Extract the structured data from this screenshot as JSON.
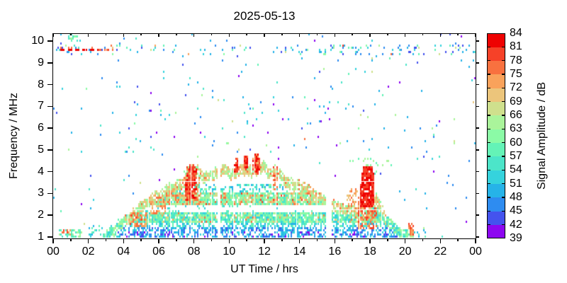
{
  "title": "2025-05-13",
  "axes": {
    "x_label": "UT Time / hrs",
    "y_label": "Frequency / MHz",
    "x_ticks": [
      "00",
      "02",
      "04",
      "06",
      "08",
      "10",
      "12",
      "14",
      "16",
      "18",
      "20",
      "22",
      "00"
    ],
    "x_tick_hours": [
      0,
      2,
      4,
      6,
      8,
      10,
      12,
      14,
      16,
      18,
      20,
      22,
      24
    ],
    "x_range_hours": [
      0,
      24
    ],
    "y_ticks": [
      "1",
      "2",
      "3",
      "4",
      "5",
      "6",
      "7",
      "8",
      "9",
      "10"
    ],
    "y_tick_mhz": [
      1,
      2,
      3,
      4,
      5,
      6,
      7,
      8,
      9,
      10
    ],
    "y_range_mhz": [
      0.94,
      10.36
    ]
  },
  "colorbar": {
    "label": "Signal Amplitude / dB",
    "min": 39,
    "max": 84,
    "step": 3,
    "tick_labels": [
      "84",
      "81",
      "78",
      "75",
      "72",
      "69",
      "66",
      "63",
      "60",
      "57",
      "54",
      "51",
      "48",
      "45",
      "42",
      "39"
    ],
    "colors_low_to_high": [
      "#8d07f0",
      "#4453ee",
      "#2e8cf0",
      "#26b3e8",
      "#35d3dd",
      "#4ce5c9",
      "#64f3b7",
      "#8bfba6",
      "#aaf49b",
      "#cfe08d",
      "#ecc57b",
      "#f9a25b",
      "#f8713f",
      "#f64128",
      "#ee0202"
    ]
  },
  "chart_data": {
    "type": "heatmap",
    "title": "2025-05-13",
    "xlabel": "UT Time / hrs",
    "ylabel": "Frequency / MHz",
    "zlabel": "Signal Amplitude / dB",
    "x_range": [
      0,
      24
    ],
    "y_range": [
      0.94,
      10.36
    ],
    "z_range": [
      39,
      84
    ],
    "time_step_hr": 0.08333,
    "freq_step_mhz": 0.1,
    "seed": 42,
    "ionogram_envelope_t_f": [
      [
        2.8,
        1.0
      ],
      [
        3.2,
        1.35
      ],
      [
        3.7,
        1.75
      ],
      [
        4.2,
        2.05
      ],
      [
        5.0,
        2.55
      ],
      [
        5.8,
        3.0
      ],
      [
        6.6,
        3.4
      ],
      [
        7.3,
        3.65
      ],
      [
        7.6,
        4.2
      ],
      [
        8.15,
        4.25
      ],
      [
        8.5,
        3.95
      ],
      [
        9.0,
        4.1
      ],
      [
        9.6,
        4.35
      ],
      [
        10.0,
        4.1
      ],
      [
        10.6,
        4.25
      ],
      [
        11.1,
        4.2
      ],
      [
        11.9,
        4.45
      ],
      [
        12.3,
        4.05
      ],
      [
        12.6,
        4.25
      ],
      [
        13.0,
        3.85
      ],
      [
        13.5,
        3.65
      ],
      [
        14.3,
        3.4
      ],
      [
        15.1,
        3.05
      ],
      [
        15.9,
        2.65
      ],
      [
        16.7,
        2.45
      ],
      [
        17.3,
        2.4
      ],
      [
        17.5,
        2.6
      ],
      [
        18.0,
        2.7
      ],
      [
        18.35,
        3.0
      ],
      [
        18.7,
        2.3
      ],
      [
        19.0,
        1.9
      ],
      [
        19.5,
        1.55
      ],
      [
        20.0,
        1.25
      ],
      [
        20.5,
        1.0
      ]
    ],
    "envelope_band": {
      "depth": 0.5,
      "p": 0.85,
      "a0": 60,
      "a1": 72,
      "warm_p": 0.2,
      "wa0": 70,
      "wa1": 78
    },
    "bands": [
      {
        "f0": 3.05,
        "f1": 3.45,
        "p": 0.35,
        "a0": 48,
        "a1": 63
      },
      {
        "f0": 2.38,
        "f1": 3.05,
        "p": 0.92,
        "a0": 54,
        "a1": 69,
        "warm_p": 0.18,
        "wa0": 69,
        "wa1": 79
      },
      {
        "f0": 2.12,
        "f1": 2.38,
        "p": 0.08,
        "a0": 51,
        "a1": 60
      },
      {
        "f0": 1.6,
        "f1": 2.12,
        "p": 0.88,
        "a0": 51,
        "a1": 66,
        "warm_p": 0.12,
        "wa0": 66,
        "wa1": 76
      },
      {
        "f0": 1.42,
        "f1": 1.6,
        "p": 0.5,
        "a0": 48,
        "a1": 60
      },
      {
        "f0": 0.9,
        "f1": 1.42,
        "p": 0.55,
        "a0": 44,
        "a1": 54,
        "purple_p": 0.3,
        "purple_below": 1.18,
        "pa0": 39,
        "pa1": 46
      }
    ],
    "amplitude_events": [
      {
        "t0": 7.5,
        "t1": 8.15,
        "f0": 2.6,
        "f1": 4.3,
        "a0": 76,
        "a1": 84,
        "p": 0.8,
        "taper": 1
      },
      {
        "t0": 7.3,
        "t1": 8.3,
        "f0": 2.45,
        "f1": 3.9,
        "a0": 70,
        "a1": 78,
        "p": 0.35
      },
      {
        "t0": 10.25,
        "t1": 10.5,
        "f0": 3.95,
        "f1": 4.65,
        "a0": 75,
        "a1": 84,
        "p": 0.8,
        "taper": 1
      },
      {
        "t0": 10.8,
        "t1": 11.05,
        "f0": 4.0,
        "f1": 4.72,
        "a0": 75,
        "a1": 84,
        "p": 0.8,
        "taper": 1
      },
      {
        "t0": 11.3,
        "t1": 11.7,
        "f0": 3.85,
        "f1": 4.75,
        "a0": 74,
        "a1": 84,
        "p": 0.75,
        "taper": 1
      },
      {
        "t0": 12.5,
        "t1": 12.75,
        "f0": 2.4,
        "f1": 4.2,
        "a0": 71,
        "a1": 80,
        "p": 0.5
      },
      {
        "t0": 4.3,
        "t1": 5.3,
        "f0": 1.45,
        "f1": 2.05,
        "a0": 69,
        "a1": 79,
        "p": 0.5
      },
      {
        "t0": 5.5,
        "t1": 6.35,
        "f0": 2.0,
        "f1": 2.6,
        "a0": 69,
        "a1": 78,
        "p": 0.45
      },
      {
        "t0": 6.35,
        "t1": 7.25,
        "f0": 2.55,
        "f1": 3.05,
        "a0": 68,
        "a1": 77,
        "p": 0.4
      },
      {
        "t0": 14.35,
        "t1": 14.65,
        "f0": 2.4,
        "f1": 3.4,
        "a0": 69,
        "a1": 77,
        "p": 0.4
      },
      {
        "t0": 16.6,
        "t1": 17.35,
        "f0": 2.2,
        "f1": 3.2,
        "a0": 69,
        "a1": 77,
        "p": 0.3
      },
      {
        "t0": 17.4,
        "t1": 18.25,
        "f0": 2.3,
        "f1": 4.15,
        "a0": 78,
        "a1": 84,
        "p": 0.9,
        "taper": 1
      },
      {
        "t0": 17.3,
        "t1": 18.35,
        "f0": 1.35,
        "f1": 2.3,
        "a0": 72,
        "a1": 81,
        "p": 0.6
      },
      {
        "t0": 20.15,
        "t1": 20.5,
        "f0": 1.0,
        "f1": 1.55,
        "a0": 73,
        "a1": 82,
        "p": 0.7
      },
      {
        "t0": 0.45,
        "t1": 0.95,
        "f0": 1.05,
        "f1": 1.3,
        "a0": 72,
        "a1": 80,
        "p": 0.5
      }
    ],
    "data_gaps_hr": [
      [
        9.33,
        9.48
      ],
      [
        15.5,
        15.78
      ]
    ],
    "dashed_line": {
      "t0": 0.35,
      "t1": 3.35,
      "f": 9.55,
      "on_cols": 3,
      "off_cols": 2,
      "red_a0": 81,
      "red_a1": 84,
      "orange_after_t": 2.55,
      "or_a0": 73,
      "or_a1": 79,
      "second_row_p": 0.25
    },
    "top_scatter_band": {
      "f0": 9.3,
      "f1": 9.85,
      "t_split1": 3.5,
      "t_split2": 12.5,
      "p_left": 0.085,
      "p_mid": 0.06,
      "p_right": 0.15
    },
    "clusters": [
      {
        "t0": 0.3,
        "t1": 1.65,
        "f0": 0.95,
        "f1": 1.35,
        "p": 0.5,
        "a0": 54,
        "a1": 67
      },
      {
        "t0": 1.95,
        "t1": 2.85,
        "f0": 0.95,
        "f1": 1.5,
        "p": 0.3,
        "a0": 50,
        "a1": 60
      },
      {
        "t0": 0.8,
        "t1": 1.35,
        "f0": 9.95,
        "f1": 10.3,
        "p": 0.5,
        "a0": 54,
        "a1": 64
      },
      {
        "t0": 16.8,
        "t1": 19.3,
        "f0": 4.2,
        "f1": 4.6,
        "p": 0.07,
        "a0": 57,
        "a1": 66
      },
      {
        "t0": 20.5,
        "t1": 21.2,
        "f0": 0.95,
        "f1": 1.3,
        "p": 0.25,
        "a0": 48,
        "a1": 58
      }
    ],
    "background_scatter": {
      "p": 0.01,
      "p_mid_band": 0.016,
      "mid_f0": 4.8,
      "mid_f1": 7.2
    }
  }
}
